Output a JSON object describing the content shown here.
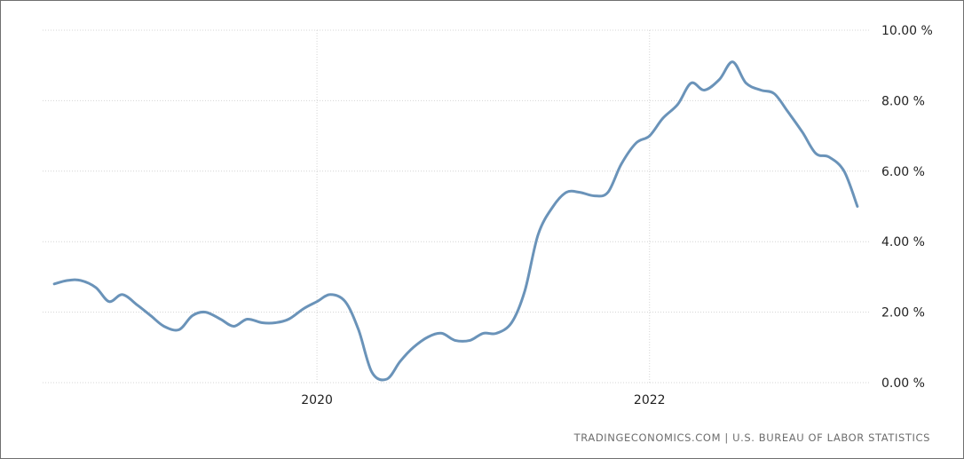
{
  "chart_data": {
    "type": "line",
    "title": "",
    "xlabel": "",
    "ylabel": "",
    "ylim": [
      0,
      10
    ],
    "xlim": [
      2018.35,
      2023.32
    ],
    "grid": true,
    "legend": "none",
    "x_ticks": [
      {
        "value": 2020,
        "label": "2020"
      },
      {
        "value": 2022,
        "label": "2022"
      }
    ],
    "y_ticks": [
      {
        "value": 10,
        "label": "10.00 %"
      },
      {
        "value": 8,
        "label": "8.00 %"
      },
      {
        "value": 6,
        "label": "6.00 %"
      },
      {
        "value": 4,
        "label": "4.00 %"
      },
      {
        "value": 2,
        "label": "2.00 %"
      },
      {
        "value": 0,
        "label": "0.00 %"
      }
    ],
    "line_color": "#6a93b9",
    "series": [
      {
        "x": [
          2018.42,
          2018.5,
          2018.58,
          2018.67,
          2018.75,
          2018.83,
          2018.92,
          2019.0,
          2019.08,
          2019.17,
          2019.25,
          2019.33,
          2019.42,
          2019.5,
          2019.58,
          2019.67,
          2019.75,
          2019.83,
          2019.92,
          2020.0,
          2020.08,
          2020.17,
          2020.25,
          2020.33,
          2020.42,
          2020.5,
          2020.58,
          2020.67,
          2020.75,
          2020.83,
          2020.92,
          2021.0,
          2021.08,
          2021.17,
          2021.25,
          2021.33,
          2021.42,
          2021.5,
          2021.58,
          2021.67,
          2021.75,
          2021.83,
          2021.92,
          2022.0,
          2022.08,
          2022.17,
          2022.25,
          2022.33,
          2022.42,
          2022.5,
          2022.58,
          2022.67,
          2022.75,
          2022.83,
          2022.92,
          2023.0,
          2023.08,
          2023.17,
          2023.25
        ],
        "values": [
          2.8,
          2.9,
          2.9,
          2.7,
          2.3,
          2.5,
          2.2,
          1.9,
          1.6,
          1.5,
          1.9,
          2.0,
          1.8,
          1.6,
          1.8,
          1.7,
          1.7,
          1.8,
          2.1,
          2.3,
          2.5,
          2.3,
          1.5,
          0.3,
          0.1,
          0.6,
          1.0,
          1.3,
          1.4,
          1.2,
          1.2,
          1.4,
          1.4,
          1.7,
          2.6,
          4.2,
          5.0,
          5.4,
          5.4,
          5.3,
          5.4,
          6.2,
          6.8,
          7.0,
          7.5,
          7.9,
          8.5,
          8.3,
          8.6,
          9.1,
          8.5,
          8.3,
          8.2,
          7.7,
          7.1,
          6.5,
          6.4,
          6.0,
          5.0
        ]
      }
    ]
  },
  "source_note": "TRADINGECONOMICS.COM | U.S. BUREAU OF LABOR STATISTICS"
}
